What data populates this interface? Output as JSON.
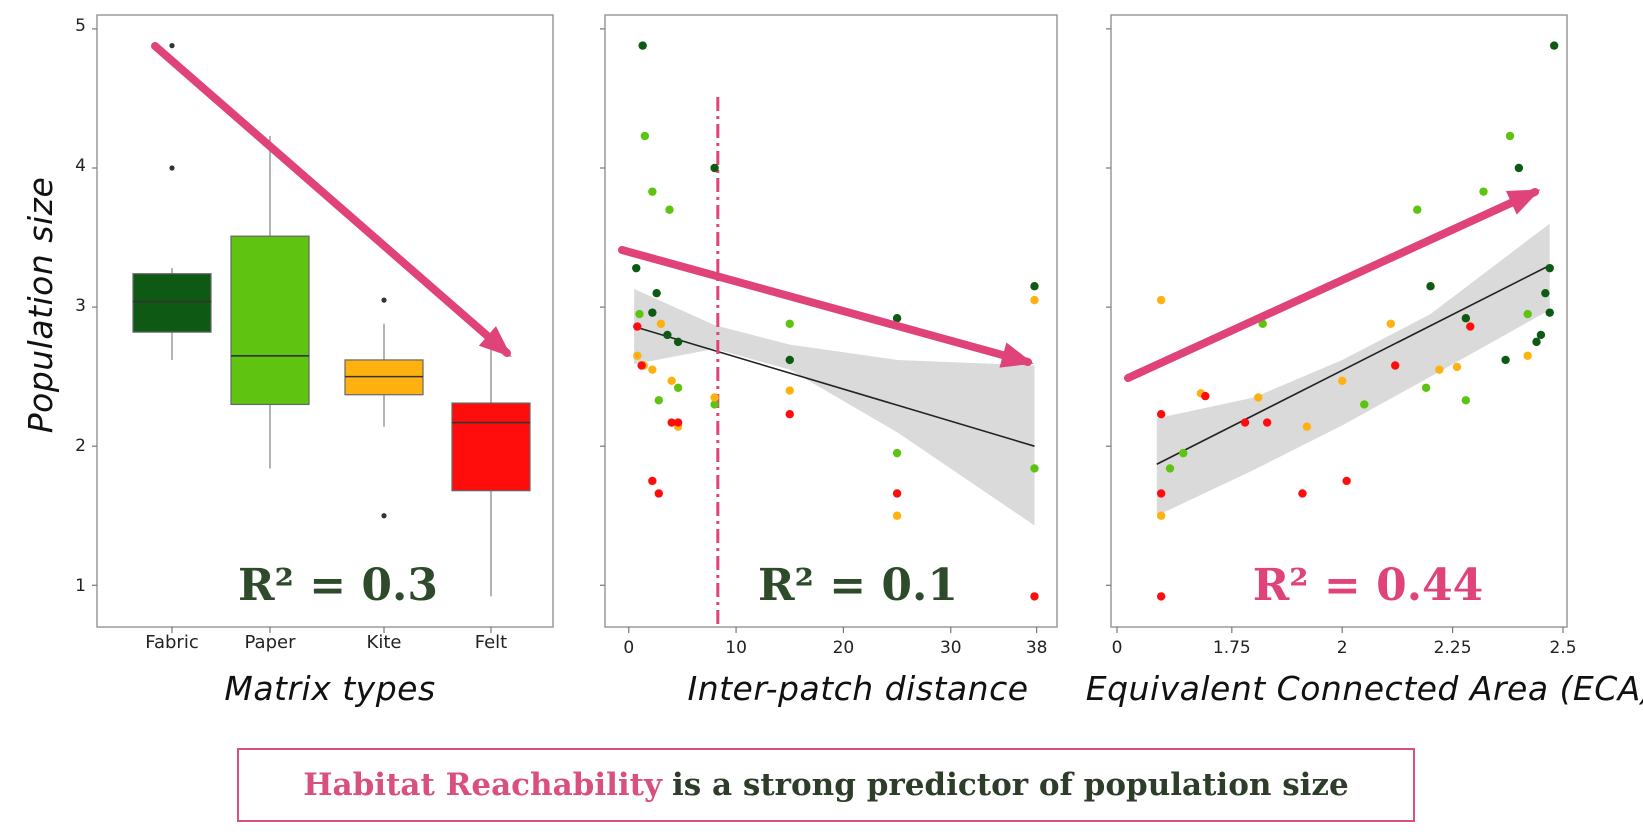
{
  "colors": {
    "Fabric": "#0e5a14",
    "Paper": "#5ec411",
    "Kite": "#ffb20f",
    "Felt": "#ff0d0d",
    "arrow": "#e0427a",
    "r2_dark": "#2d4a2a",
    "r2_pink": "#e0427a",
    "band": "#d6d6d6"
  },
  "y_axis": {
    "label": "Population size",
    "ticks": [
      "1",
      "2",
      "3",
      "4",
      "5"
    ],
    "range": [
      0.7,
      5.1
    ]
  },
  "banner": {
    "highlight": "Habitat Reachability",
    "rest": "is a strong predictor of population size"
  },
  "chart_data": [
    {
      "type": "box",
      "xlabel": "Matrix types",
      "ylabel": "Population size",
      "ylim": [
        0.7,
        5.1
      ],
      "categories": [
        "Fabric",
        "Paper",
        "Kite",
        "Felt"
      ],
      "annotation": "R² = 0.3",
      "boxes": [
        {
          "category": "Fabric",
          "min": 2.62,
          "q1": 2.82,
          "median": 3.04,
          "q3": 3.24,
          "max": 3.28,
          "outliers": [
            4.0,
            4.88
          ]
        },
        {
          "category": "Paper",
          "min": 1.84,
          "q1": 2.3,
          "median": 2.65,
          "q3": 3.51,
          "max": 4.23,
          "outliers": []
        },
        {
          "category": "Kite",
          "min": 2.14,
          "q1": 2.37,
          "median": 2.5,
          "q3": 2.62,
          "max": 2.88,
          "outliers": [
            3.05,
            1.5
          ]
        },
        {
          "category": "Felt",
          "min": 0.92,
          "q1": 1.68,
          "median": 2.17,
          "q3": 2.31,
          "max": 2.78,
          "outliers": []
        }
      ],
      "trend_arrow": "decreasing"
    },
    {
      "type": "scatter",
      "xlabel": "Inter-patch distance",
      "ylabel": "Population size",
      "xlim": [
        -1,
        38.5
      ],
      "xticks": [
        "0",
        "10",
        "20",
        "30",
        "38"
      ],
      "xtick_values": [
        0,
        10,
        20,
        30,
        38
      ],
      "ylim": [
        0.7,
        5.1
      ],
      "annotation": "R² = 0.1",
      "threshold_line_x": 8.3,
      "fit": {
        "x": [
          0.5,
          37.8
        ],
        "y": [
          2.86,
          2.0
        ]
      },
      "band": {
        "x": [
          0.5,
          8,
          15,
          25,
          37.8
        ],
        "upper": [
          3.13,
          2.87,
          2.73,
          2.62,
          2.58
        ],
        "lower": [
          2.59,
          2.7,
          2.55,
          2.1,
          1.43
        ]
      },
      "series": [
        {
          "name": "Fabric",
          "points": [
            [
              1.3,
              4.88
            ],
            [
              8.0,
              4.0
            ],
            [
              2.6,
              3.1
            ],
            [
              0.7,
              3.28
            ],
            [
              2.2,
              2.96
            ],
            [
              3.6,
              2.8
            ],
            [
              4.6,
              2.75
            ],
            [
              15.0,
              2.62
            ],
            [
              25.0,
              2.92
            ],
            [
              37.8,
              3.15
            ]
          ]
        },
        {
          "name": "Paper",
          "points": [
            [
              1.5,
              4.23
            ],
            [
              2.2,
              3.83
            ],
            [
              3.8,
              3.7
            ],
            [
              1.0,
              2.95
            ],
            [
              4.6,
              2.42
            ],
            [
              2.8,
              2.33
            ],
            [
              8.0,
              2.3
            ],
            [
              15.0,
              2.88
            ],
            [
              25.0,
              1.95
            ],
            [
              37.8,
              1.84
            ]
          ]
        },
        {
          "name": "Kite",
          "points": [
            [
              0.8,
              2.65
            ],
            [
              1.4,
              2.58
            ],
            [
              2.2,
              2.55
            ],
            [
              3.0,
              2.88
            ],
            [
              4.0,
              2.47
            ],
            [
              4.6,
              2.14
            ],
            [
              8.0,
              2.35
            ],
            [
              15.0,
              2.4
            ],
            [
              25.0,
              1.5
            ],
            [
              37.8,
              3.05
            ]
          ]
        },
        {
          "name": "Felt",
          "points": [
            [
              0.8,
              2.86
            ],
            [
              1.2,
              2.58
            ],
            [
              2.2,
              1.75
            ],
            [
              2.8,
              1.66
            ],
            [
              4.0,
              2.17
            ],
            [
              4.6,
              2.17
            ],
            [
              15.0,
              2.23
            ],
            [
              25.0,
              1.66
            ],
            [
              37.8,
              0.92
            ]
          ]
        }
      ],
      "trend_arrow": "decreasing"
    },
    {
      "type": "scatter",
      "xlabel": "Equivalent Connected Area (ECA)",
      "ylabel": "Population size",
      "xlim": [
        1.49,
        2.5
      ],
      "xticks": [
        "0",
        "1.75",
        "2",
        "2.25",
        "2.5"
      ],
      "xtick_values": [
        1.49,
        1.75,
        2.0,
        2.25,
        2.5
      ],
      "ylim": [
        0.7,
        5.1
      ],
      "annotation": "R² = 0.44",
      "fit": {
        "x": [
          1.58,
          2.47
        ],
        "y": [
          1.87,
          3.3
        ]
      },
      "band": {
        "x": [
          1.58,
          1.8,
          2.0,
          2.2,
          2.47
        ],
        "upper": [
          2.2,
          2.35,
          2.62,
          2.95,
          3.6
        ],
        "lower": [
          1.5,
          1.83,
          2.15,
          2.5,
          2.98
        ]
      },
      "series": [
        {
          "name": "Fabric",
          "points": [
            [
              2.48,
              4.88
            ],
            [
              2.4,
              4.0
            ],
            [
              2.47,
              3.28
            ],
            [
              2.46,
              3.1
            ],
            [
              2.47,
              2.96
            ],
            [
              2.45,
              2.8
            ],
            [
              2.44,
              2.75
            ],
            [
              2.2,
              3.15
            ],
            [
              2.28,
              2.92
            ],
            [
              2.37,
              2.62
            ]
          ]
        },
        {
          "name": "Paper",
          "points": [
            [
              2.38,
              4.23
            ],
            [
              2.32,
              3.83
            ],
            [
              2.17,
              3.7
            ],
            [
              1.82,
              2.88
            ],
            [
              2.42,
              2.95
            ],
            [
              2.19,
              2.42
            ],
            [
              2.28,
              2.33
            ],
            [
              2.05,
              2.3
            ],
            [
              1.64,
              1.95
            ],
            [
              1.61,
              1.84
            ]
          ]
        },
        {
          "name": "Kite",
          "points": [
            [
              1.59,
              3.05
            ],
            [
              1.68,
              2.38
            ],
            [
              1.81,
              2.35
            ],
            [
              2.11,
              2.88
            ],
            [
              2.26,
              2.57
            ],
            [
              2.42,
              2.65
            ],
            [
              2.0,
              2.47
            ],
            [
              2.22,
              2.55
            ],
            [
              1.92,
              2.14
            ],
            [
              1.59,
              1.5
            ]
          ]
        },
        {
          "name": "Felt",
          "points": [
            [
              1.59,
              2.23
            ],
            [
              1.69,
              2.36
            ],
            [
              1.78,
              2.17
            ],
            [
              1.83,
              2.17
            ],
            [
              2.12,
              2.58
            ],
            [
              2.29,
              2.86
            ],
            [
              1.91,
              1.66
            ],
            [
              2.01,
              1.75
            ],
            [
              1.59,
              1.66
            ],
            [
              1.59,
              0.92
            ]
          ]
        }
      ],
      "trend_arrow": "increasing"
    }
  ]
}
